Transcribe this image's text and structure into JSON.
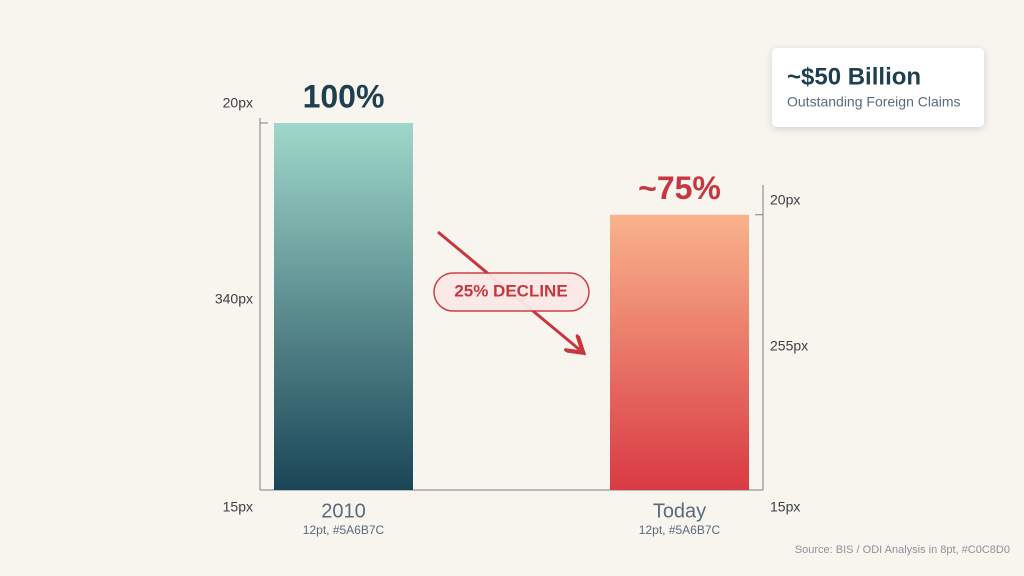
{
  "chart_data": {
    "type": "bar",
    "categories": [
      "2010",
      "Today"
    ],
    "category_notes": [
      "12pt, #5A6B7C",
      "12pt, #5A6B7C"
    ],
    "values": [
      100,
      75
    ],
    "value_labels": [
      "100%",
      "~75%"
    ],
    "colors": [
      [
        "#9fd8ca",
        "#1a4557"
      ],
      [
        "#f9b38c",
        "#d93a43"
      ]
    ],
    "label_colors": [
      "#1d3f50",
      "#c8373f"
    ],
    "ylim": [
      0,
      100
    ],
    "left_axis_labels": [
      "20px",
      "340px",
      "15px"
    ],
    "right_axis_labels": [
      "20px",
      "255px",
      "15px"
    ],
    "annotation": "25% DECLINE",
    "callout": {
      "title": "~$50 Billion",
      "subtitle": "Outstanding Foreign Claims"
    },
    "source": "Source: BIS / ODI Analysis in 8pt, #C0C8D0"
  }
}
